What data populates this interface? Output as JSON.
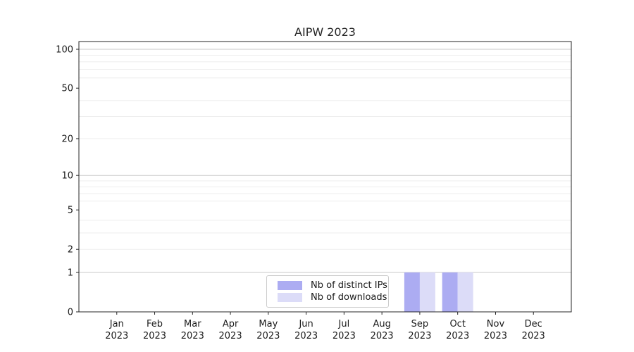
{
  "chart_data": {
    "type": "bar",
    "title": "AIPW 2023",
    "categories": [
      "Jan",
      "Feb",
      "Mar",
      "Apr",
      "May",
      "Jun",
      "Jul",
      "Aug",
      "Sep",
      "Oct",
      "Nov",
      "Dec"
    ],
    "x_tick_second_line": "2023",
    "series": [
      {
        "name": "Nb of distinct IPs",
        "color": "#acacf2",
        "values": [
          0,
          0,
          0,
          0,
          0,
          0,
          0,
          0,
          1,
          1,
          0,
          0
        ]
      },
      {
        "name": "Nb of downloads",
        "color": "#dcdcf8",
        "values": [
          0,
          0,
          0,
          0,
          0,
          0,
          0,
          0,
          1,
          1,
          0,
          0
        ]
      }
    ],
    "yscale": "log1p",
    "ylim": [
      0,
      115
    ],
    "yticks": [
      0,
      1,
      2,
      5,
      10,
      20,
      50,
      100
    ],
    "gridlines": {
      "major": [
        1,
        10,
        100
      ],
      "minor": [
        2,
        3,
        4,
        6,
        7,
        8,
        9,
        20,
        30,
        40,
        60,
        70,
        80,
        90
      ],
      "on": true
    },
    "legend": {
      "position": "lower center"
    },
    "colors": {
      "major_grid": "#c9c9c9",
      "minor_grid": "#ebebeb",
      "spine": "#262626",
      "text": "#1a1a1a"
    }
  }
}
